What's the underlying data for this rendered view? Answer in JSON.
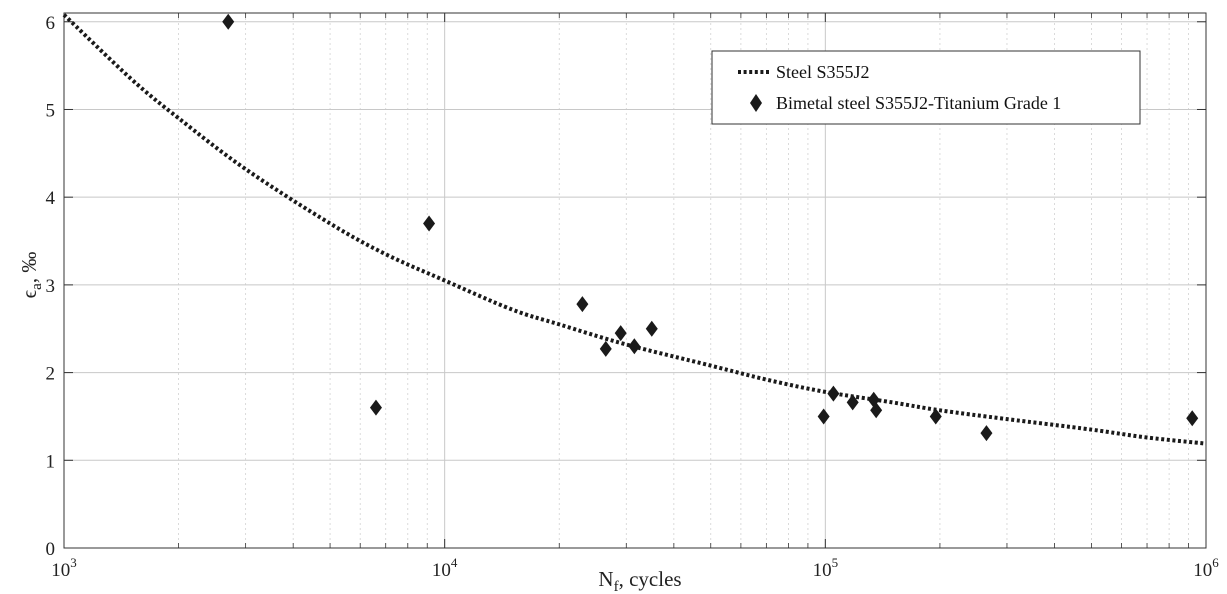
{
  "chart_data": {
    "type": "scatter",
    "title": "",
    "xlabel": {
      "main": "N",
      "sub": "f",
      "rest": ", cycles"
    },
    "ylabel": {
      "main": "ϵ",
      "sub": "a",
      "rest": ", ‰"
    },
    "x_scale": "log",
    "xlim": [
      1000,
      1000000
    ],
    "ylim": [
      0,
      6.1
    ],
    "x_ticks": [
      {
        "base": "10",
        "exp": "3",
        "value": 1000
      },
      {
        "base": "10",
        "exp": "4",
        "value": 10000
      },
      {
        "base": "10",
        "exp": "5",
        "value": 100000
      },
      {
        "base": "10",
        "exp": "6",
        "value": 1000000
      }
    ],
    "y_ticks": [
      0,
      1,
      2,
      3,
      4,
      5,
      6
    ],
    "grid": true,
    "legend_position": "top-right",
    "series": [
      {
        "name": "Steel S355J2",
        "kind": "line",
        "style": "dotted",
        "color": "#1a1a1a",
        "x": [
          1000,
          1500,
          2000,
          3000,
          5000,
          7000,
          10000,
          15000,
          20000,
          30000,
          50000,
          70000,
          100000,
          150000,
          200000,
          300000,
          500000,
          700000,
          1000000
        ],
        "y": [
          6.08,
          5.35,
          4.9,
          4.32,
          3.7,
          3.35,
          3.05,
          2.72,
          2.55,
          2.32,
          2.08,
          1.92,
          1.78,
          1.66,
          1.57,
          1.47,
          1.35,
          1.26,
          1.19
        ]
      },
      {
        "name": "Bimetal steel S355J2-Titanium Grade 1",
        "kind": "scatter",
        "marker": "diamond",
        "color": "#1a1a1a",
        "x": [
          2700,
          6600,
          9100,
          23000,
          26500,
          29000,
          31500,
          35000,
          99000,
          105000,
          118000,
          134000,
          136000,
          195000,
          265000,
          920000
        ],
        "y": [
          6.0,
          1.6,
          3.7,
          2.78,
          2.27,
          2.45,
          2.3,
          2.5,
          1.5,
          1.76,
          1.66,
          1.69,
          1.57,
          1.5,
          1.31,
          1.48
        ]
      }
    ]
  }
}
